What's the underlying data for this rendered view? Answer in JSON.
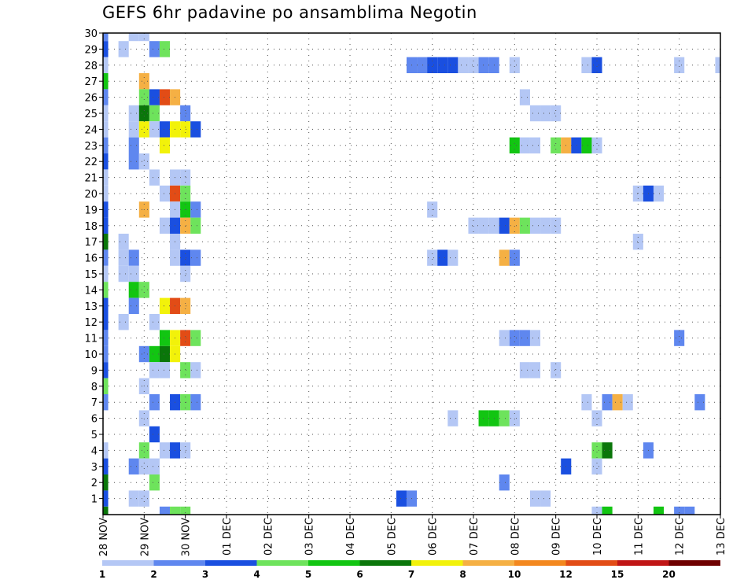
{
  "chart_data": {
    "type": "heatmap",
    "title": "GEFS 6hr padavine po ansamblima Negotin",
    "x_tick_labels": [
      "28 NOV",
      "29 NOV",
      "30 NOV",
      "01 DEC",
      "02 DEC",
      "03 DEC",
      "04 DEC",
      "05 DEC",
      "06 DEC",
      "07 DEC",
      "08 DEC",
      "09 DEC",
      "10 DEC",
      "11 DEC",
      "12 DEC",
      "13 DEC"
    ],
    "y_tick_labels": [
      "1",
      "2",
      "3",
      "4",
      "5",
      "6",
      "7",
      "8",
      "9",
      "10",
      "11",
      "12",
      "13",
      "14",
      "15",
      "16",
      "17",
      "18",
      "19",
      "20",
      "21",
      "22",
      "23",
      "24",
      "25",
      "26",
      "27",
      "28",
      "29",
      "30"
    ],
    "xlim": [
      0,
      60
    ],
    "ylim": [
      0,
      30
    ],
    "x_unit": "6-hour step from 28 NOV 00Z",
    "y_unit": "ensemble member",
    "grid": true,
    "legend": {
      "position": "bottom",
      "labels": [
        "1",
        "2",
        "3",
        "4",
        "5",
        "6",
        "7",
        "8",
        "10",
        "12",
        "15",
        "20"
      ],
      "colors": [
        "#b4c7f5",
        "#5f87ef",
        "#1a4fe0",
        "#6ee35c",
        "#12c512",
        "#0a760a",
        "#f2f20a",
        "#f5b044",
        "#f3881f",
        "#e24c16",
        "#c01515",
        "#6e0000"
      ]
    },
    "cells": [
      {
        "x": 0,
        "y": 30,
        "v": 2
      },
      {
        "x": 0,
        "y": 29,
        "v": 3
      },
      {
        "x": 0,
        "y": 28,
        "v": 1
      },
      {
        "x": 0,
        "y": 27,
        "v": 5
      },
      {
        "x": 0,
        "y": 26,
        "v": 2
      },
      {
        "x": 0,
        "y": 25,
        "v": 1
      },
      {
        "x": 0,
        "y": 24,
        "v": 1
      },
      {
        "x": 0,
        "y": 23,
        "v": 2
      },
      {
        "x": 0,
        "y": 22,
        "v": 3
      },
      {
        "x": 0,
        "y": 21,
        "v": 1
      },
      {
        "x": 0,
        "y": 20,
        "v": 1
      },
      {
        "x": 0,
        "y": 19,
        "v": 3
      },
      {
        "x": 0,
        "y": 18,
        "v": 3
      },
      {
        "x": 0,
        "y": 17,
        "v": 6
      },
      {
        "x": 0,
        "y": 16,
        "v": 2
      },
      {
        "x": 0,
        "y": 15,
        "v": 1
      },
      {
        "x": 0,
        "y": 14,
        "v": 4
      },
      {
        "x": 0,
        "y": 13,
        "v": 3
      },
      {
        "x": 0,
        "y": 12,
        "v": 3
      },
      {
        "x": 0,
        "y": 11,
        "v": 2
      },
      {
        "x": 0,
        "y": 10,
        "v": 2
      },
      {
        "x": 0,
        "y": 9,
        "v": 3
      },
      {
        "x": 0,
        "y": 8,
        "v": 4
      },
      {
        "x": 0,
        "y": 7,
        "v": 2
      },
      {
        "x": 0,
        "y": 4,
        "v": 1
      },
      {
        "x": 0,
        "y": 3,
        "v": 3
      },
      {
        "x": 0,
        "y": 2,
        "v": 6
      },
      {
        "x": 0,
        "y": 1,
        "v": 3
      },
      {
        "x": 0,
        "y": 0,
        "v": 6
      },
      {
        "x": 2,
        "y": 29,
        "v": 1
      },
      {
        "x": 2,
        "y": 17,
        "v": 1
      },
      {
        "x": 2,
        "y": 16,
        "v": 1
      },
      {
        "x": 2,
        "y": 15,
        "v": 1
      },
      {
        "x": 2,
        "y": 12,
        "v": 1
      },
      {
        "x": 3,
        "y": 30,
        "v": 1
      },
      {
        "x": 3,
        "y": 25,
        "v": 1
      },
      {
        "x": 3,
        "y": 24,
        "v": 1
      },
      {
        "x": 3,
        "y": 23,
        "v": 2
      },
      {
        "x": 3,
        "y": 22,
        "v": 2
      },
      {
        "x": 3,
        "y": 16,
        "v": 2
      },
      {
        "x": 3,
        "y": 15,
        "v": 1
      },
      {
        "x": 3,
        "y": 14,
        "v": 5
      },
      {
        "x": 3,
        "y": 13,
        "v": 2
      },
      {
        "x": 3,
        "y": 3,
        "v": 2
      },
      {
        "x": 3,
        "y": 1,
        "v": 1
      },
      {
        "x": 4,
        "y": 30,
        "v": 1
      },
      {
        "x": 4,
        "y": 27,
        "v": 9
      },
      {
        "x": 4,
        "y": 26,
        "v": 4
      },
      {
        "x": 4,
        "y": 25,
        "v": 6
      },
      {
        "x": 4,
        "y": 24,
        "v": 7
      },
      {
        "x": 4,
        "y": 22,
        "v": 1
      },
      {
        "x": 4,
        "y": 19,
        "v": 9
      },
      {
        "x": 4,
        "y": 14,
        "v": 4
      },
      {
        "x": 4,
        "y": 10,
        "v": 2
      },
      {
        "x": 4,
        "y": 8,
        "v": 1
      },
      {
        "x": 4,
        "y": 6,
        "v": 1
      },
      {
        "x": 4,
        "y": 4,
        "v": 4
      },
      {
        "x": 4,
        "y": 3,
        "v": 1
      },
      {
        "x": 4,
        "y": 1,
        "v": 1
      },
      {
        "x": 5,
        "y": 29,
        "v": 2
      },
      {
        "x": 5,
        "y": 26,
        "v": 3
      },
      {
        "x": 5,
        "y": 25,
        "v": 4
      },
      {
        "x": 5,
        "y": 24,
        "v": 1
      },
      {
        "x": 5,
        "y": 21,
        "v": 1
      },
      {
        "x": 5,
        "y": 12,
        "v": 1
      },
      {
        "x": 5,
        "y": 10,
        "v": 5
      },
      {
        "x": 5,
        "y": 9,
        "v": 1
      },
      {
        "x": 5,
        "y": 7,
        "v": 2
      },
      {
        "x": 5,
        "y": 5,
        "v": 3
      },
      {
        "x": 5,
        "y": 3,
        "v": 1
      },
      {
        "x": 5,
        "y": 2,
        "v": 4
      },
      {
        "x": 6,
        "y": 29,
        "v": 4
      },
      {
        "x": 6,
        "y": 26,
        "v": 12
      },
      {
        "x": 6,
        "y": 24,
        "v": 3
      },
      {
        "x": 6,
        "y": 23,
        "v": 7
      },
      {
        "x": 6,
        "y": 20,
        "v": 1
      },
      {
        "x": 6,
        "y": 18,
        "v": 1
      },
      {
        "x": 6,
        "y": 13,
        "v": 7
      },
      {
        "x": 6,
        "y": 11,
        "v": 5
      },
      {
        "x": 6,
        "y": 10,
        "v": 6
      },
      {
        "x": 6,
        "y": 9,
        "v": 1
      },
      {
        "x": 6,
        "y": 4,
        "v": 1
      },
      {
        "x": 6,
        "y": 0,
        "v": 2
      },
      {
        "x": 7,
        "y": 26,
        "v": 9
      },
      {
        "x": 7,
        "y": 24,
        "v": 7
      },
      {
        "x": 7,
        "y": 21,
        "v": 1
      },
      {
        "x": 7,
        "y": 20,
        "v": 12
      },
      {
        "x": 7,
        "y": 19,
        "v": 1
      },
      {
        "x": 7,
        "y": 18,
        "v": 3
      },
      {
        "x": 7,
        "y": 17,
        "v": 1
      },
      {
        "x": 7,
        "y": 16,
        "v": 1
      },
      {
        "x": 7,
        "y": 13,
        "v": 12
      },
      {
        "x": 7,
        "y": 11,
        "v": 7
      },
      {
        "x": 7,
        "y": 10,
        "v": 7
      },
      {
        "x": 7,
        "y": 7,
        "v": 3
      },
      {
        "x": 7,
        "y": 4,
        "v": 3
      },
      {
        "x": 7,
        "y": 0,
        "v": 4
      },
      {
        "x": 8,
        "y": 25,
        "v": 2
      },
      {
        "x": 8,
        "y": 24,
        "v": 7
      },
      {
        "x": 8,
        "y": 21,
        "v": 1
      },
      {
        "x": 8,
        "y": 20,
        "v": 4
      },
      {
        "x": 8,
        "y": 19,
        "v": 5
      },
      {
        "x": 8,
        "y": 18,
        "v": 9
      },
      {
        "x": 8,
        "y": 16,
        "v": 3
      },
      {
        "x": 8,
        "y": 15,
        "v": 1
      },
      {
        "x": 8,
        "y": 13,
        "v": 9
      },
      {
        "x": 8,
        "y": 11,
        "v": 12
      },
      {
        "x": 8,
        "y": 9,
        "v": 4
      },
      {
        "x": 8,
        "y": 7,
        "v": 4
      },
      {
        "x": 8,
        "y": 4,
        "v": 1
      },
      {
        "x": 8,
        "y": 0,
        "v": 4
      },
      {
        "x": 9,
        "y": 24,
        "v": 3
      },
      {
        "x": 9,
        "y": 19,
        "v": 2
      },
      {
        "x": 9,
        "y": 18,
        "v": 4
      },
      {
        "x": 9,
        "y": 16,
        "v": 2
      },
      {
        "x": 9,
        "y": 11,
        "v": 4
      },
      {
        "x": 9,
        "y": 9,
        "v": 1
      },
      {
        "x": 9,
        "y": 7,
        "v": 2
      },
      {
        "x": 29,
        "y": 1,
        "v": 3
      },
      {
        "x": 30,
        "y": 28,
        "v": 2
      },
      {
        "x": 30,
        "y": 1,
        "v": 2
      },
      {
        "x": 31,
        "y": 28,
        "v": 2
      },
      {
        "x": 32,
        "y": 28,
        "v": 3
      },
      {
        "x": 32,
        "y": 19,
        "v": 1
      },
      {
        "x": 32,
        "y": 16,
        "v": 1
      },
      {
        "x": 33,
        "y": 28,
        "v": 3
      },
      {
        "x": 33,
        "y": 16,
        "v": 3
      },
      {
        "x": 34,
        "y": 28,
        "v": 3
      },
      {
        "x": 34,
        "y": 16,
        "v": 1
      },
      {
        "x": 34,
        "y": 6,
        "v": 1
      },
      {
        "x": 35,
        "y": 28,
        "v": 1
      },
      {
        "x": 36,
        "y": 28,
        "v": 1
      },
      {
        "x": 36,
        "y": 18,
        "v": 1
      },
      {
        "x": 37,
        "y": 28,
        "v": 2
      },
      {
        "x": 37,
        "y": 18,
        "v": 1
      },
      {
        "x": 37,
        "y": 6,
        "v": 5
      },
      {
        "x": 38,
        "y": 28,
        "v": 2
      },
      {
        "x": 38,
        "y": 18,
        "v": 1
      },
      {
        "x": 38,
        "y": 6,
        "v": 5
      },
      {
        "x": 39,
        "y": 18,
        "v": 3
      },
      {
        "x": 39,
        "y": 16,
        "v": 9
      },
      {
        "x": 39,
        "y": 11,
        "v": 1
      },
      {
        "x": 39,
        "y": 6,
        "v": 4
      },
      {
        "x": 39,
        "y": 2,
        "v": 2
      },
      {
        "x": 40,
        "y": 28,
        "v": 1
      },
      {
        "x": 40,
        "y": 23,
        "v": 5
      },
      {
        "x": 40,
        "y": 18,
        "v": 9
      },
      {
        "x": 40,
        "y": 16,
        "v": 2
      },
      {
        "x": 40,
        "y": 11,
        "v": 2
      },
      {
        "x": 40,
        "y": 6,
        "v": 1
      },
      {
        "x": 41,
        "y": 26,
        "v": 1
      },
      {
        "x": 41,
        "y": 23,
        "v": 1
      },
      {
        "x": 41,
        "y": 18,
        "v": 4
      },
      {
        "x": 41,
        "y": 11,
        "v": 2
      },
      {
        "x": 41,
        "y": 9,
        "v": 1
      },
      {
        "x": 42,
        "y": 25,
        "v": 1
      },
      {
        "x": 42,
        "y": 23,
        "v": 1
      },
      {
        "x": 42,
        "y": 18,
        "v": 1
      },
      {
        "x": 42,
        "y": 11,
        "v": 1
      },
      {
        "x": 42,
        "y": 9,
        "v": 1
      },
      {
        "x": 42,
        "y": 1,
        "v": 1
      },
      {
        "x": 43,
        "y": 25,
        "v": 1
      },
      {
        "x": 43,
        "y": 18,
        "v": 1
      },
      {
        "x": 43,
        "y": 1,
        "v": 1
      },
      {
        "x": 44,
        "y": 25,
        "v": 1
      },
      {
        "x": 44,
        "y": 23,
        "v": 4
      },
      {
        "x": 44,
        "y": 18,
        "v": 1
      },
      {
        "x": 44,
        "y": 9,
        "v": 1
      },
      {
        "x": 45,
        "y": 23,
        "v": 9
      },
      {
        "x": 45,
        "y": 3,
        "v": 3
      },
      {
        "x": 46,
        "y": 23,
        "v": 3
      },
      {
        "x": 47,
        "y": 28,
        "v": 1
      },
      {
        "x": 47,
        "y": 23,
        "v": 5
      },
      {
        "x": 47,
        "y": 7,
        "v": 1
      },
      {
        "x": 48,
        "y": 28,
        "v": 3
      },
      {
        "x": 48,
        "y": 23,
        "v": 1
      },
      {
        "x": 48,
        "y": 6,
        "v": 1
      },
      {
        "x": 48,
        "y": 4,
        "v": 4
      },
      {
        "x": 48,
        "y": 3,
        "v": 1
      },
      {
        "x": 48,
        "y": 0,
        "v": 1
      },
      {
        "x": 49,
        "y": 7,
        "v": 2
      },
      {
        "x": 49,
        "y": 4,
        "v": 6
      },
      {
        "x": 49,
        "y": 0,
        "v": 5
      },
      {
        "x": 50,
        "y": 7,
        "v": 9
      },
      {
        "x": 51,
        "y": 7,
        "v": 1
      },
      {
        "x": 52,
        "y": 20,
        "v": 1
      },
      {
        "x": 52,
        "y": 17,
        "v": 1
      },
      {
        "x": 53,
        "y": 20,
        "v": 3
      },
      {
        "x": 53,
        "y": 4,
        "v": 2
      },
      {
        "x": 54,
        "y": 20,
        "v": 1
      },
      {
        "x": 54,
        "y": 0,
        "v": 5
      },
      {
        "x": 56,
        "y": 28,
        "v": 1
      },
      {
        "x": 56,
        "y": 11,
        "v": 2
      },
      {
        "x": 56,
        "y": 0,
        "v": 2
      },
      {
        "x": 57,
        "y": 0,
        "v": 2
      },
      {
        "x": 58,
        "y": 7,
        "v": 2
      },
      {
        "x": 60,
        "y": 28,
        "v": 1
      }
    ]
  }
}
